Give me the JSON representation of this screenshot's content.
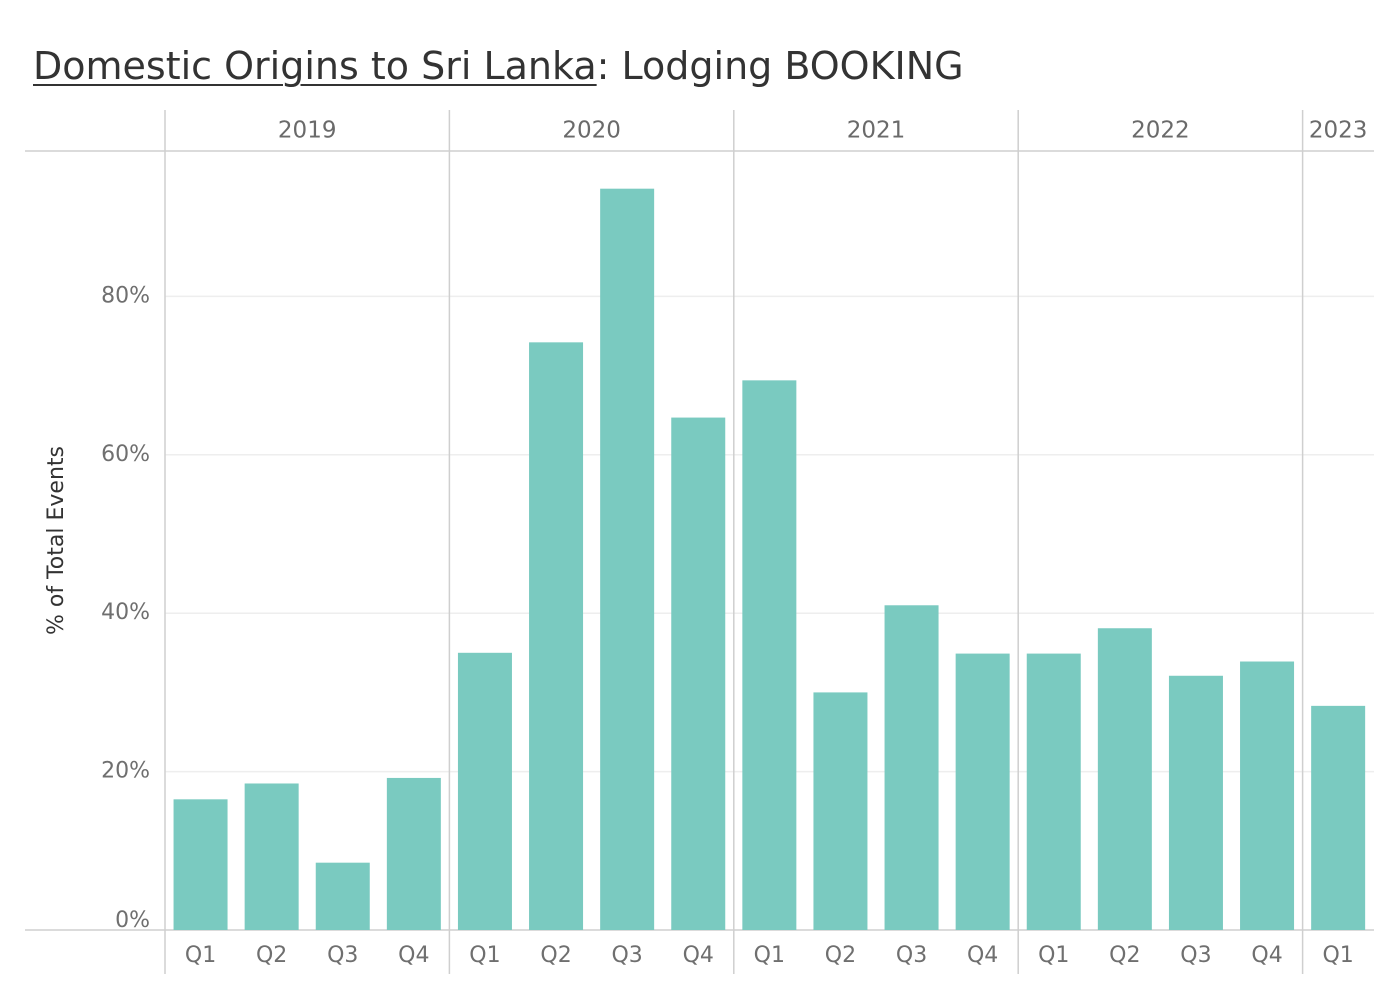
{
  "chart_data": {
    "type": "bar",
    "title_underlined": "Domestic Origins to Sri Lanka",
    "title_rest": ": Lodging BOOKING",
    "ylabel": "% of Total Events",
    "ylim": [
      0,
      100
    ],
    "yticks": [
      0,
      20,
      40,
      60,
      80
    ],
    "ytick_labels": [
      "0%",
      "20%",
      "40%",
      "60%",
      "80%"
    ],
    "grid": true,
    "color": "#7ACAC0",
    "groups": [
      {
        "year": "2019",
        "quarters": [
          "Q1",
          "Q2",
          "Q3",
          "Q4"
        ],
        "values": [
          16.5,
          18.5,
          8.5,
          19.2
        ]
      },
      {
        "year": "2020",
        "quarters": [
          "Q1",
          "Q2",
          "Q3",
          "Q4"
        ],
        "values": [
          35.0,
          74.2,
          93.6,
          64.7
        ]
      },
      {
        "year": "2021",
        "quarters": [
          "Q1",
          "Q2",
          "Q3",
          "Q4"
        ],
        "values": [
          69.4,
          30.0,
          41.0,
          34.9
        ]
      },
      {
        "year": "2022",
        "quarters": [
          "Q1",
          "Q2",
          "Q3",
          "Q4"
        ],
        "values": [
          34.9,
          38.1,
          32.1,
          33.9
        ]
      },
      {
        "year": "2023",
        "quarters": [
          "Q1"
        ],
        "values": [
          28.3
        ]
      }
    ]
  }
}
